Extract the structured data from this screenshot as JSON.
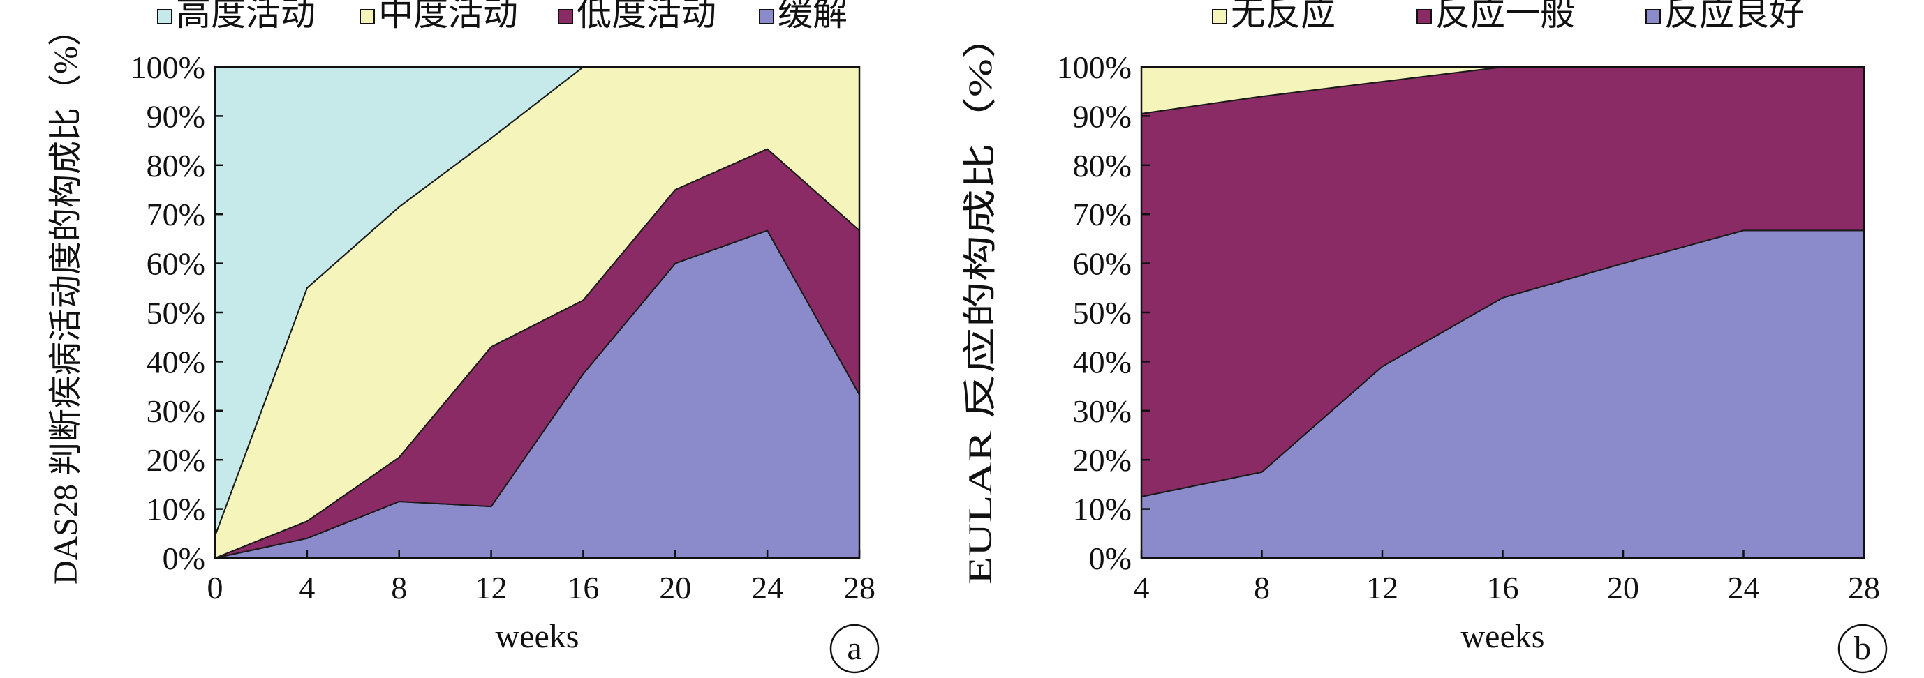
{
  "chart_data": [
    {
      "type": "area",
      "stacked": true,
      "percent": true,
      "panel_label": "a",
      "xlabel": "weeks",
      "ylabel": "DAS28 判断疾病活动度的构成比（%）",
      "x": [
        0,
        4,
        8,
        12,
        16,
        20,
        24,
        28
      ],
      "xlim": [
        0,
        28
      ],
      "ylim": [
        0,
        100
      ],
      "yticks": [
        "0%",
        "10%",
        "20%",
        "30%",
        "40%",
        "50%",
        "60%",
        "70%",
        "80%",
        "90%",
        "100%"
      ],
      "legend_position": "top",
      "grid": false,
      "series": [
        {
          "name": "缓解",
          "color": "#8b8bcc",
          "values": [
            0,
            4,
            11.5,
            10.5,
            37.5,
            60,
            66.7,
            33.3
          ]
        },
        {
          "name": "低度活动",
          "color": "#8b2b65",
          "values": [
            0,
            3.5,
            9,
            32.5,
            15,
            15,
            16.6,
            33.4
          ]
        },
        {
          "name": "中度活动",
          "color": "#f4f4bb",
          "values": [
            4.5,
            47.5,
            51,
            42.5,
            47.5,
            25,
            16.7,
            33.3
          ]
        },
        {
          "name": "高度活动",
          "color": "#c6e9ea",
          "values": [
            95.5,
            45,
            28.5,
            14.5,
            0,
            0,
            0,
            0
          ]
        }
      ],
      "legend_order": [
        "高度活动",
        "中度活动",
        "低度活动",
        "缓解"
      ]
    },
    {
      "type": "area",
      "stacked": true,
      "percent": true,
      "panel_label": "b",
      "xlabel": "weeks",
      "ylabel": "EULAR 反应的构成比（%）",
      "x": [
        4,
        8,
        12,
        16,
        20,
        24,
        28
      ],
      "xlim": [
        4,
        28
      ],
      "ylim": [
        0,
        100
      ],
      "yticks": [
        "0%",
        "10%",
        "20%",
        "30%",
        "40%",
        "50%",
        "60%",
        "70%",
        "80%",
        "90%",
        "100%"
      ],
      "legend_position": "top",
      "grid": false,
      "series": [
        {
          "name": "反应良好",
          "color": "#8b8bcc",
          "values": [
            12.5,
            17.5,
            39,
            53,
            60,
            66.7,
            66.7
          ]
        },
        {
          "name": "反应一般",
          "color": "#8b2b65",
          "values": [
            78,
            76.5,
            58,
            47,
            40,
            33.3,
            33.3
          ]
        },
        {
          "name": "无反应",
          "color": "#f4f4bb",
          "values": [
            9.5,
            6,
            3,
            0,
            0,
            0,
            0
          ]
        }
      ],
      "legend_order": [
        "无反应",
        "反应一般",
        "反应良好"
      ]
    }
  ]
}
